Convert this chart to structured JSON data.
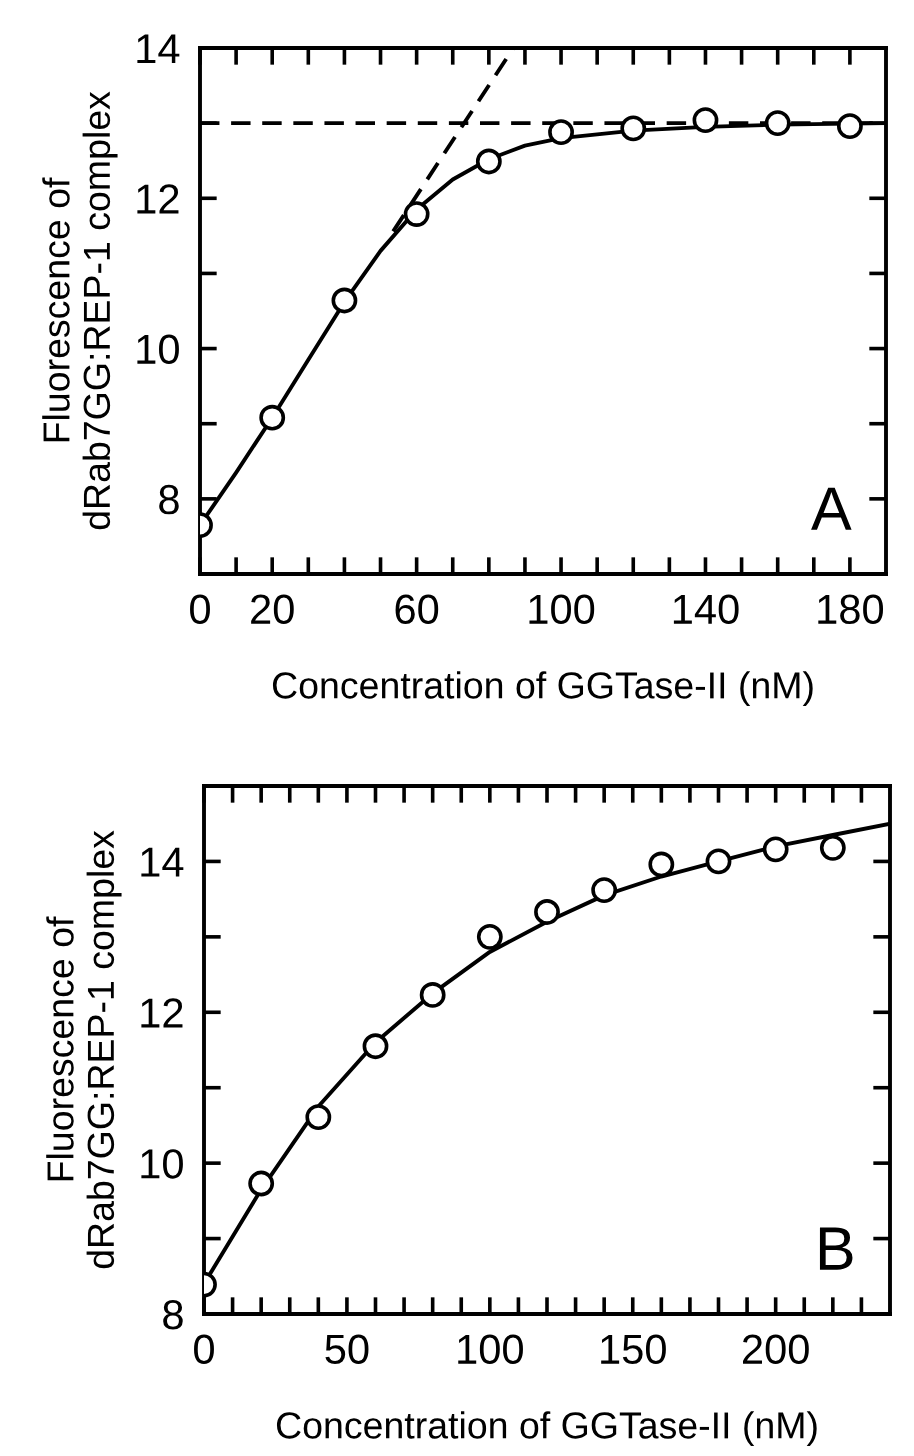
{
  "chart_data": [
    {
      "type": "scatter",
      "xlabel": "Concentration of GGTase-II (nM)",
      "ylabel": "Fluorescence of\ndRab7GG:REP-1 complex",
      "annotations": [
        "A"
      ],
      "xlim": [
        0,
        190
      ],
      "ylim": [
        7,
        14
      ],
      "xticks": [
        0,
        {
          "value": 10,
          "label": null
        },
        20,
        {
          "value": 30,
          "label": null
        },
        {
          "value": 40,
          "label": null
        },
        {
          "value": 50,
          "label": null
        },
        60,
        {
          "value": 70,
          "label": null
        },
        {
          "value": 80,
          "label": null
        },
        {
          "value": 90,
          "label": null
        },
        100,
        {
          "value": 110,
          "label": null
        },
        {
          "value": 120,
          "label": null
        },
        {
          "value": 130,
          "label": null
        },
        140,
        {
          "value": 150,
          "label": null
        },
        {
          "value": 160,
          "label": null
        },
        {
          "value": 170,
          "label": null
        },
        180
      ],
      "yticks": [
        8,
        {
          "value": 9,
          "label": null
        },
        10,
        {
          "value": 11,
          "label": null
        },
        12,
        {
          "value": 13,
          "label": null
        },
        14
      ],
      "ref_lines": [
        {
          "axis": "y",
          "value": 13,
          "line_style": "dashed",
          "color": "#000000"
        }
      ],
      "series": [
        {
          "marker": "circle",
          "color": "#000000",
          "x": [
            0,
            20,
            40,
            60,
            80,
            100,
            120,
            140,
            160,
            180
          ],
          "values": [
            7.65,
            9.08,
            10.64,
            11.79,
            12.49,
            12.88,
            12.93,
            13.04,
            13.0,
            12.96
          ]
        },
        {
          "type": "line",
          "marker": "none",
          "line_style": "solid",
          "color": "#000000",
          "x": [
            0,
            10,
            20,
            30,
            40,
            50,
            60,
            70,
            80,
            90,
            100,
            120,
            140,
            160,
            190
          ],
          "values": [
            7.65,
            8.35,
            9.08,
            9.85,
            10.62,
            11.3,
            11.85,
            12.25,
            12.52,
            12.7,
            12.8,
            12.9,
            12.95,
            12.98,
            13.0
          ]
        },
        {
          "type": "line",
          "marker": "none",
          "line_style": "dashed",
          "color": "#000000",
          "x": [
            53.5,
            86.8
          ],
          "values": [
            11.56,
            14
          ]
        }
      ]
    },
    {
      "type": "scatter",
      "xlabel": "Concentration of GGTase-II (nM)",
      "ylabel": "Fluorescence of\ndRab7GG:REP-1 complex",
      "annotations": [
        "B"
      ],
      "xlim": [
        0,
        240
      ],
      "ylim": [
        8,
        15
      ],
      "xticks": [
        0,
        {
          "value": 10,
          "label": null
        },
        {
          "value": 20,
          "label": null
        },
        {
          "value": 30,
          "label": null
        },
        {
          "value": 40,
          "label": null
        },
        50,
        {
          "value": 60,
          "label": null
        },
        {
          "value": 70,
          "label": null
        },
        {
          "value": 80,
          "label": null
        },
        {
          "value": 90,
          "label": null
        },
        100,
        {
          "value": 110,
          "label": null
        },
        {
          "value": 120,
          "label": null
        },
        {
          "value": 130,
          "label": null
        },
        {
          "value": 140,
          "label": null
        },
        150,
        {
          "value": 160,
          "label": null
        },
        {
          "value": 170,
          "label": null
        },
        {
          "value": 180,
          "label": null
        },
        {
          "value": 190,
          "label": null
        },
        200,
        {
          "value": 210,
          "label": null
        },
        {
          "value": 220,
          "label": null
        },
        {
          "value": 230,
          "label": null
        }
      ],
      "yticks": [
        8,
        {
          "value": 9,
          "label": null
        },
        10,
        {
          "value": 11,
          "label": null
        },
        12,
        {
          "value": 13,
          "label": null
        },
        14
      ],
      "series": [
        {
          "marker": "circle",
          "color": "#000000",
          "x": [
            0,
            20,
            40,
            60,
            80,
            100,
            120,
            140,
            160,
            180,
            200,
            220
          ],
          "values": [
            8.39,
            9.73,
            10.61,
            11.55,
            12.23,
            13.0,
            13.33,
            13.62,
            13.96,
            14.0,
            14.16,
            14.18
          ]
        },
        {
          "type": "line",
          "marker": "none",
          "line_style": "solid",
          "color": "#000000",
          "x": [
            0,
            20,
            40,
            60,
            80,
            100,
            120,
            140,
            160,
            180,
            200,
            220,
            240
          ],
          "values": [
            8.4,
            9.65,
            10.75,
            11.6,
            12.25,
            12.8,
            13.2,
            13.55,
            13.8,
            14.0,
            14.2,
            14.35,
            14.5
          ]
        }
      ]
    }
  ]
}
